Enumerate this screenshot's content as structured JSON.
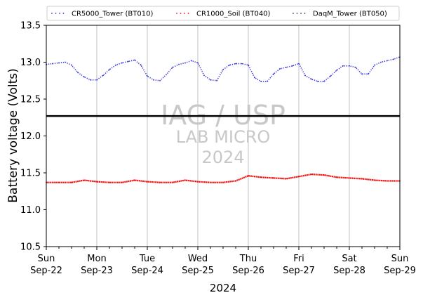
{
  "chart_data": {
    "type": "line",
    "ylabel": "Battery voltage (Volts)",
    "xlabel": "2024",
    "ylim": [
      10.5,
      13.5
    ],
    "xlim": [
      "2024-09-22T00:00",
      "2024-09-29T00:00"
    ],
    "yticks": [
      10.5,
      11.0,
      11.5,
      12.0,
      12.5,
      13.0,
      13.5
    ],
    "ytick_labels": [
      "10.5",
      "11.0",
      "11.5",
      "12.0",
      "12.5",
      "13.0",
      "13.5"
    ],
    "xticks": [
      {
        "date": "2024-09-22",
        "day": "Sun",
        "date_label": "Sep-22"
      },
      {
        "date": "2024-09-23",
        "day": "Mon",
        "date_label": "Sep-23"
      },
      {
        "date": "2024-09-24",
        "day": "Tue",
        "date_label": "Sep-24"
      },
      {
        "date": "2024-09-25",
        "day": "Wed",
        "date_label": "Sep-25"
      },
      {
        "date": "2024-09-26",
        "day": "Thu",
        "date_label": "Sep-26"
      },
      {
        "date": "2024-09-27",
        "day": "Fri",
        "date_label": "Sep-27"
      },
      {
        "date": "2024-09-28",
        "day": "Sat",
        "date_label": "Sep-28"
      },
      {
        "date": "2024-09-29",
        "day": "Sun",
        "date_label": "Sep-29"
      }
    ],
    "vertical_grid": true,
    "legend_placement": "top",
    "reference_line": {
      "y": 12.27,
      "color": "#000000"
    },
    "watermark": {
      "line1": "IAG / USP",
      "line2": "LAB MICRO",
      "line3": "2024"
    },
    "series": [
      {
        "name": "CR5000_Tower (BT010)",
        "color": "#3333dd",
        "x": [
          "2024-09-22T00:00",
          "2024-09-22T03:00",
          "2024-09-22T06:00",
          "2024-09-22T09:00",
          "2024-09-22T12:00",
          "2024-09-22T15:00",
          "2024-09-22T18:00",
          "2024-09-22T21:00",
          "2024-09-23T00:00",
          "2024-09-23T03:00",
          "2024-09-23T06:00",
          "2024-09-23T09:00",
          "2024-09-23T12:00",
          "2024-09-23T15:00",
          "2024-09-23T18:00",
          "2024-09-23T21:00",
          "2024-09-24T00:00",
          "2024-09-24T03:00",
          "2024-09-24T06:00",
          "2024-09-24T09:00",
          "2024-09-24T12:00",
          "2024-09-24T15:00",
          "2024-09-24T18:00",
          "2024-09-24T21:00",
          "2024-09-25T00:00",
          "2024-09-25T03:00",
          "2024-09-25T06:00",
          "2024-09-25T09:00",
          "2024-09-25T12:00",
          "2024-09-25T15:00",
          "2024-09-25T18:00",
          "2024-09-25T21:00",
          "2024-09-26T00:00",
          "2024-09-26T03:00",
          "2024-09-26T06:00",
          "2024-09-26T09:00",
          "2024-09-26T12:00",
          "2024-09-26T15:00",
          "2024-09-26T18:00",
          "2024-09-26T21:00",
          "2024-09-27T00:00",
          "2024-09-27T03:00",
          "2024-09-27T06:00",
          "2024-09-27T09:00",
          "2024-09-27T12:00",
          "2024-09-27T15:00",
          "2024-09-27T18:00",
          "2024-09-27T21:00",
          "2024-09-28T00:00",
          "2024-09-28T03:00",
          "2024-09-28T06:00",
          "2024-09-28T09:00",
          "2024-09-28T12:00",
          "2024-09-28T15:00",
          "2024-09-28T18:00",
          "2024-09-28T21:00",
          "2024-09-29T00:00"
        ],
        "values": [
          12.97,
          12.98,
          12.99,
          13.0,
          12.96,
          12.86,
          12.8,
          12.76,
          12.76,
          12.82,
          12.9,
          12.96,
          12.99,
          13.01,
          13.03,
          12.96,
          12.81,
          12.76,
          12.75,
          12.83,
          12.93,
          12.97,
          12.99,
          13.02,
          12.99,
          12.82,
          12.76,
          12.75,
          12.9,
          12.96,
          12.98,
          12.98,
          12.96,
          12.79,
          12.74,
          12.74,
          12.84,
          12.91,
          12.93,
          12.95,
          12.98,
          12.82,
          12.77,
          12.74,
          12.74,
          12.81,
          12.89,
          12.95,
          12.95,
          12.93,
          12.84,
          12.84,
          12.96,
          13.0,
          13.02,
          13.04,
          13.07
        ]
      },
      {
        "name": "CR1000_Soil (BT040)",
        "color": "#ee1111",
        "x": [
          "2024-09-22T00:00",
          "2024-09-22T06:00",
          "2024-09-22T12:00",
          "2024-09-22T18:00",
          "2024-09-23T00:00",
          "2024-09-23T06:00",
          "2024-09-23T12:00",
          "2024-09-23T18:00",
          "2024-09-24T00:00",
          "2024-09-24T06:00",
          "2024-09-24T12:00",
          "2024-09-24T18:00",
          "2024-09-25T00:00",
          "2024-09-25T06:00",
          "2024-09-25T12:00",
          "2024-09-25T18:00",
          "2024-09-26T00:00",
          "2024-09-26T06:00",
          "2024-09-26T12:00",
          "2024-09-26T18:00",
          "2024-09-27T00:00",
          "2024-09-27T06:00",
          "2024-09-27T12:00",
          "2024-09-27T18:00",
          "2024-09-28T00:00",
          "2024-09-28T06:00",
          "2024-09-28T12:00",
          "2024-09-28T18:00",
          "2024-09-29T00:00"
        ],
        "values": [
          11.37,
          11.37,
          11.37,
          11.4,
          11.38,
          11.37,
          11.37,
          11.4,
          11.38,
          11.37,
          11.37,
          11.4,
          11.38,
          11.37,
          11.37,
          11.39,
          11.46,
          11.44,
          11.43,
          11.42,
          11.45,
          11.48,
          11.47,
          11.44,
          11.43,
          11.42,
          11.4,
          11.39,
          11.39
        ]
      },
      {
        "name": "DaqM_Tower (BT050)",
        "color": "#333355",
        "x": [],
        "values": []
      }
    ]
  }
}
